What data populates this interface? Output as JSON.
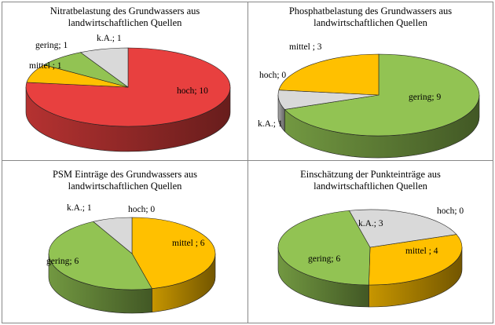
{
  "colors": {
    "hoch": "#e8403f",
    "mittel": "#ffc000",
    "gering": "#92c353",
    "ka": "#d9d9d9"
  },
  "chart_data": [
    {
      "type": "pie",
      "title_line1": "Nitratbelastung  des Grundwassers aus",
      "title_line2": "landwirtschaftlichen Quellen",
      "slices": [
        {
          "category": "hoch",
          "label": "hoch; 10",
          "value": 10
        },
        {
          "category": "mittel",
          "label": "mittel ; 1",
          "value": 1
        },
        {
          "category": "gering",
          "label": "gering; 1",
          "value": 1
        },
        {
          "category": "ka",
          "label": "k.A.; 1",
          "value": 1
        }
      ]
    },
    {
      "type": "pie",
      "title_line1": "Phosphatbelastung des Grundwassers aus",
      "title_line2": "landwirtschaftlichen Quellen",
      "slices": [
        {
          "category": "gering",
          "label": "gering; 9",
          "value": 9
        },
        {
          "category": "ka",
          "label": "k.A.; 1",
          "value": 1
        },
        {
          "category": "hoch",
          "label": "hoch; 0",
          "value": 0
        },
        {
          "category": "mittel",
          "label": "mittel ; 3",
          "value": 3
        }
      ]
    },
    {
      "type": "pie",
      "title_line1": "PSM Einträge des Grundwassers aus",
      "title_line2": "landwirtschaftlichen Quellen",
      "slices": [
        {
          "category": "hoch",
          "label": "hoch; 0",
          "value": 0
        },
        {
          "category": "mittel",
          "label": "mittel ; 6",
          "value": 6
        },
        {
          "category": "gering",
          "label": "gering; 6",
          "value": 6
        },
        {
          "category": "ka",
          "label": "k.A.; 1",
          "value": 1
        }
      ]
    },
    {
      "type": "pie",
      "title_line1": "Einschätzung der Punkteinträge aus",
      "title_line2": "landwirtschaftlichen Quellen",
      "slices": [
        {
          "category": "hoch",
          "label": "hoch; 0",
          "value": 0
        },
        {
          "category": "mittel",
          "label": "mittel ; 4",
          "value": 4
        },
        {
          "category": "gering",
          "label": "gering; 6",
          "value": 6
        },
        {
          "category": "ka",
          "label": "k.A.; 3",
          "value": 3
        }
      ]
    }
  ]
}
